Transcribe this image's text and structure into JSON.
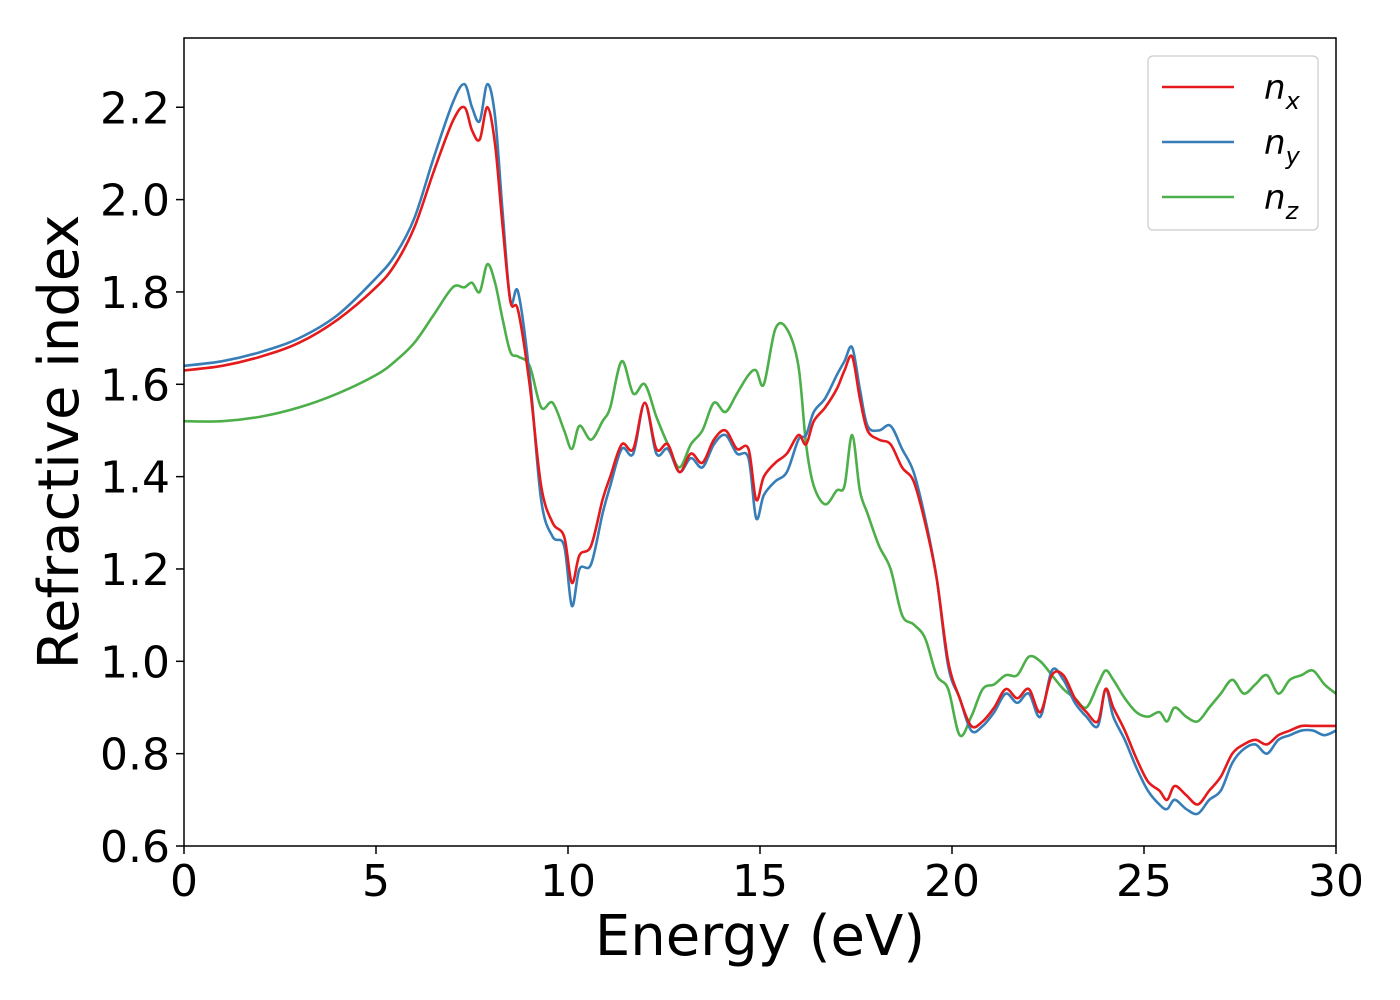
{
  "chart_data": {
    "type": "line",
    "xlabel": "Energy (eV)",
    "ylabel": "Refractive index",
    "xlim": [
      0,
      30
    ],
    "ylim": [
      0.6,
      2.35
    ],
    "xticks": [
      0,
      5,
      10,
      15,
      20,
      25,
      30
    ],
    "xtick_labels": [
      "0",
      "5",
      "10",
      "15",
      "20",
      "25",
      "30"
    ],
    "yticks": [
      0.6,
      0.8,
      1.0,
      1.2,
      1.4,
      1.6,
      1.8,
      2.0,
      2.2
    ],
    "ytick_labels": [
      "0.6",
      "0.8",
      "1.0",
      "1.2",
      "1.4",
      "1.6",
      "1.8",
      "2.0",
      "2.2"
    ],
    "grid": false,
    "legend_position": "top-right",
    "series": [
      {
        "name": "n",
        "subscript": "x",
        "color": "#e41a1c",
        "x": [
          0,
          1,
          2,
          3,
          4,
          5,
          5.5,
          6,
          6.5,
          7,
          7.3,
          7.5,
          7.7,
          7.9,
          8.1,
          8.3,
          8.5,
          8.7,
          9.0,
          9.3,
          9.6,
          9.9,
          10.1,
          10.3,
          10.6,
          10.9,
          11.1,
          11.4,
          11.7,
          12.0,
          12.3,
          12.6,
          12.9,
          13.2,
          13.5,
          13.8,
          14.1,
          14.4,
          14.7,
          14.9,
          15.1,
          15.4,
          15.7,
          16.0,
          16.2,
          16.4,
          16.7,
          17.0,
          17.2,
          17.4,
          17.6,
          17.8,
          18.1,
          18.4,
          18.7,
          19.0,
          19.3,
          19.6,
          19.9,
          20.2,
          20.5,
          20.8,
          21.1,
          21.4,
          21.7,
          22.0,
          22.3,
          22.6,
          22.9,
          23.2,
          23.5,
          23.8,
          24.0,
          24.2,
          24.5,
          24.8,
          25.1,
          25.4,
          25.6,
          25.8,
          26.1,
          26.4,
          26.7,
          27.0,
          27.3,
          27.6,
          27.9,
          28.2,
          28.5,
          28.8,
          29.1,
          29.4,
          29.7,
          30.0
        ],
        "values": [
          1.63,
          1.64,
          1.66,
          1.69,
          1.74,
          1.81,
          1.86,
          1.94,
          2.06,
          2.17,
          2.2,
          2.15,
          2.13,
          2.2,
          2.12,
          1.94,
          1.78,
          1.76,
          1.6,
          1.38,
          1.3,
          1.27,
          1.17,
          1.23,
          1.25,
          1.35,
          1.4,
          1.47,
          1.46,
          1.56,
          1.46,
          1.47,
          1.41,
          1.45,
          1.43,
          1.48,
          1.5,
          1.46,
          1.46,
          1.35,
          1.4,
          1.43,
          1.45,
          1.49,
          1.47,
          1.52,
          1.55,
          1.59,
          1.63,
          1.66,
          1.57,
          1.5,
          1.48,
          1.47,
          1.42,
          1.39,
          1.3,
          1.18,
          1.0,
          0.92,
          0.86,
          0.87,
          0.9,
          0.94,
          0.92,
          0.94,
          0.89,
          0.97,
          0.97,
          0.92,
          0.89,
          0.87,
          0.94,
          0.9,
          0.85,
          0.79,
          0.74,
          0.72,
          0.7,
          0.73,
          0.71,
          0.69,
          0.72,
          0.75,
          0.8,
          0.82,
          0.83,
          0.82,
          0.84,
          0.85,
          0.86,
          0.86,
          0.86,
          0.86
        ]
      },
      {
        "name": "n",
        "subscript": "y",
        "color": "#377eb8",
        "x": [
          0,
          1,
          2,
          3,
          4,
          5,
          5.5,
          6,
          6.5,
          7,
          7.3,
          7.5,
          7.7,
          7.9,
          8.1,
          8.3,
          8.5,
          8.7,
          9.0,
          9.3,
          9.6,
          9.9,
          10.1,
          10.3,
          10.6,
          10.9,
          11.1,
          11.4,
          11.7,
          12.0,
          12.3,
          12.6,
          12.9,
          13.2,
          13.5,
          13.8,
          14.1,
          14.4,
          14.7,
          14.9,
          15.1,
          15.4,
          15.7,
          16.0,
          16.2,
          16.4,
          16.7,
          17.0,
          17.2,
          17.4,
          17.6,
          17.8,
          18.1,
          18.4,
          18.7,
          19.0,
          19.3,
          19.6,
          19.9,
          20.2,
          20.5,
          20.8,
          21.1,
          21.4,
          21.7,
          22.0,
          22.3,
          22.6,
          22.9,
          23.2,
          23.5,
          23.8,
          24.0,
          24.2,
          24.5,
          24.8,
          25.1,
          25.4,
          25.6,
          25.8,
          26.1,
          26.4,
          26.7,
          27.0,
          27.3,
          27.6,
          27.9,
          28.2,
          28.5,
          28.8,
          29.1,
          29.4,
          29.7,
          30.0
        ],
        "values": [
          1.64,
          1.65,
          1.67,
          1.7,
          1.75,
          1.83,
          1.88,
          1.96,
          2.09,
          2.21,
          2.25,
          2.2,
          2.17,
          2.25,
          2.18,
          1.97,
          1.78,
          1.8,
          1.62,
          1.35,
          1.27,
          1.25,
          1.12,
          1.2,
          1.21,
          1.32,
          1.38,
          1.46,
          1.45,
          1.56,
          1.45,
          1.46,
          1.41,
          1.44,
          1.42,
          1.47,
          1.49,
          1.45,
          1.44,
          1.31,
          1.36,
          1.39,
          1.41,
          1.48,
          1.49,
          1.54,
          1.57,
          1.62,
          1.65,
          1.68,
          1.59,
          1.51,
          1.5,
          1.51,
          1.46,
          1.41,
          1.31,
          1.18,
          0.99,
          0.92,
          0.85,
          0.86,
          0.89,
          0.93,
          0.91,
          0.93,
          0.88,
          0.98,
          0.96,
          0.91,
          0.88,
          0.86,
          0.94,
          0.88,
          0.83,
          0.77,
          0.72,
          0.69,
          0.68,
          0.7,
          0.68,
          0.67,
          0.7,
          0.72,
          0.78,
          0.81,
          0.82,
          0.8,
          0.83,
          0.84,
          0.85,
          0.85,
          0.84,
          0.85
        ]
      },
      {
        "name": "n",
        "subscript": "z",
        "color": "#4daf4a",
        "x": [
          0,
          1,
          2,
          3,
          4,
          5,
          5.5,
          6,
          6.5,
          7,
          7.3,
          7.5,
          7.7,
          7.9,
          8.1,
          8.3,
          8.5,
          8.7,
          9.0,
          9.3,
          9.6,
          9.9,
          10.1,
          10.3,
          10.6,
          10.9,
          11.1,
          11.4,
          11.7,
          12.0,
          12.3,
          12.6,
          12.9,
          13.2,
          13.5,
          13.8,
          14.1,
          14.4,
          14.7,
          14.9,
          15.1,
          15.4,
          15.7,
          16.0,
          16.2,
          16.4,
          16.7,
          17.0,
          17.2,
          17.4,
          17.6,
          17.8,
          18.1,
          18.4,
          18.7,
          19.0,
          19.3,
          19.6,
          19.9,
          20.2,
          20.5,
          20.8,
          21.1,
          21.4,
          21.7,
          22.0,
          22.3,
          22.6,
          22.9,
          23.2,
          23.5,
          23.8,
          24.0,
          24.2,
          24.5,
          24.8,
          25.1,
          25.4,
          25.6,
          25.8,
          26.1,
          26.4,
          26.7,
          27.0,
          27.3,
          27.6,
          27.9,
          28.2,
          28.5,
          28.8,
          29.1,
          29.4,
          29.7,
          30.0
        ],
        "values": [
          1.52,
          1.52,
          1.53,
          1.55,
          1.58,
          1.62,
          1.65,
          1.69,
          1.75,
          1.81,
          1.81,
          1.82,
          1.8,
          1.86,
          1.82,
          1.74,
          1.67,
          1.66,
          1.64,
          1.55,
          1.56,
          1.5,
          1.46,
          1.51,
          1.48,
          1.52,
          1.55,
          1.65,
          1.58,
          1.6,
          1.53,
          1.47,
          1.42,
          1.47,
          1.5,
          1.56,
          1.54,
          1.58,
          1.62,
          1.63,
          1.6,
          1.72,
          1.72,
          1.64,
          1.47,
          1.38,
          1.34,
          1.37,
          1.38,
          1.49,
          1.37,
          1.32,
          1.25,
          1.2,
          1.1,
          1.08,
          1.05,
          0.97,
          0.94,
          0.84,
          0.88,
          0.94,
          0.95,
          0.97,
          0.97,
          1.01,
          1.0,
          0.97,
          0.94,
          0.92,
          0.9,
          0.95,
          0.98,
          0.96,
          0.92,
          0.89,
          0.88,
          0.89,
          0.87,
          0.9,
          0.88,
          0.87,
          0.9,
          0.93,
          0.96,
          0.93,
          0.95,
          0.97,
          0.93,
          0.96,
          0.97,
          0.98,
          0.95,
          0.93
        ]
      }
    ]
  }
}
